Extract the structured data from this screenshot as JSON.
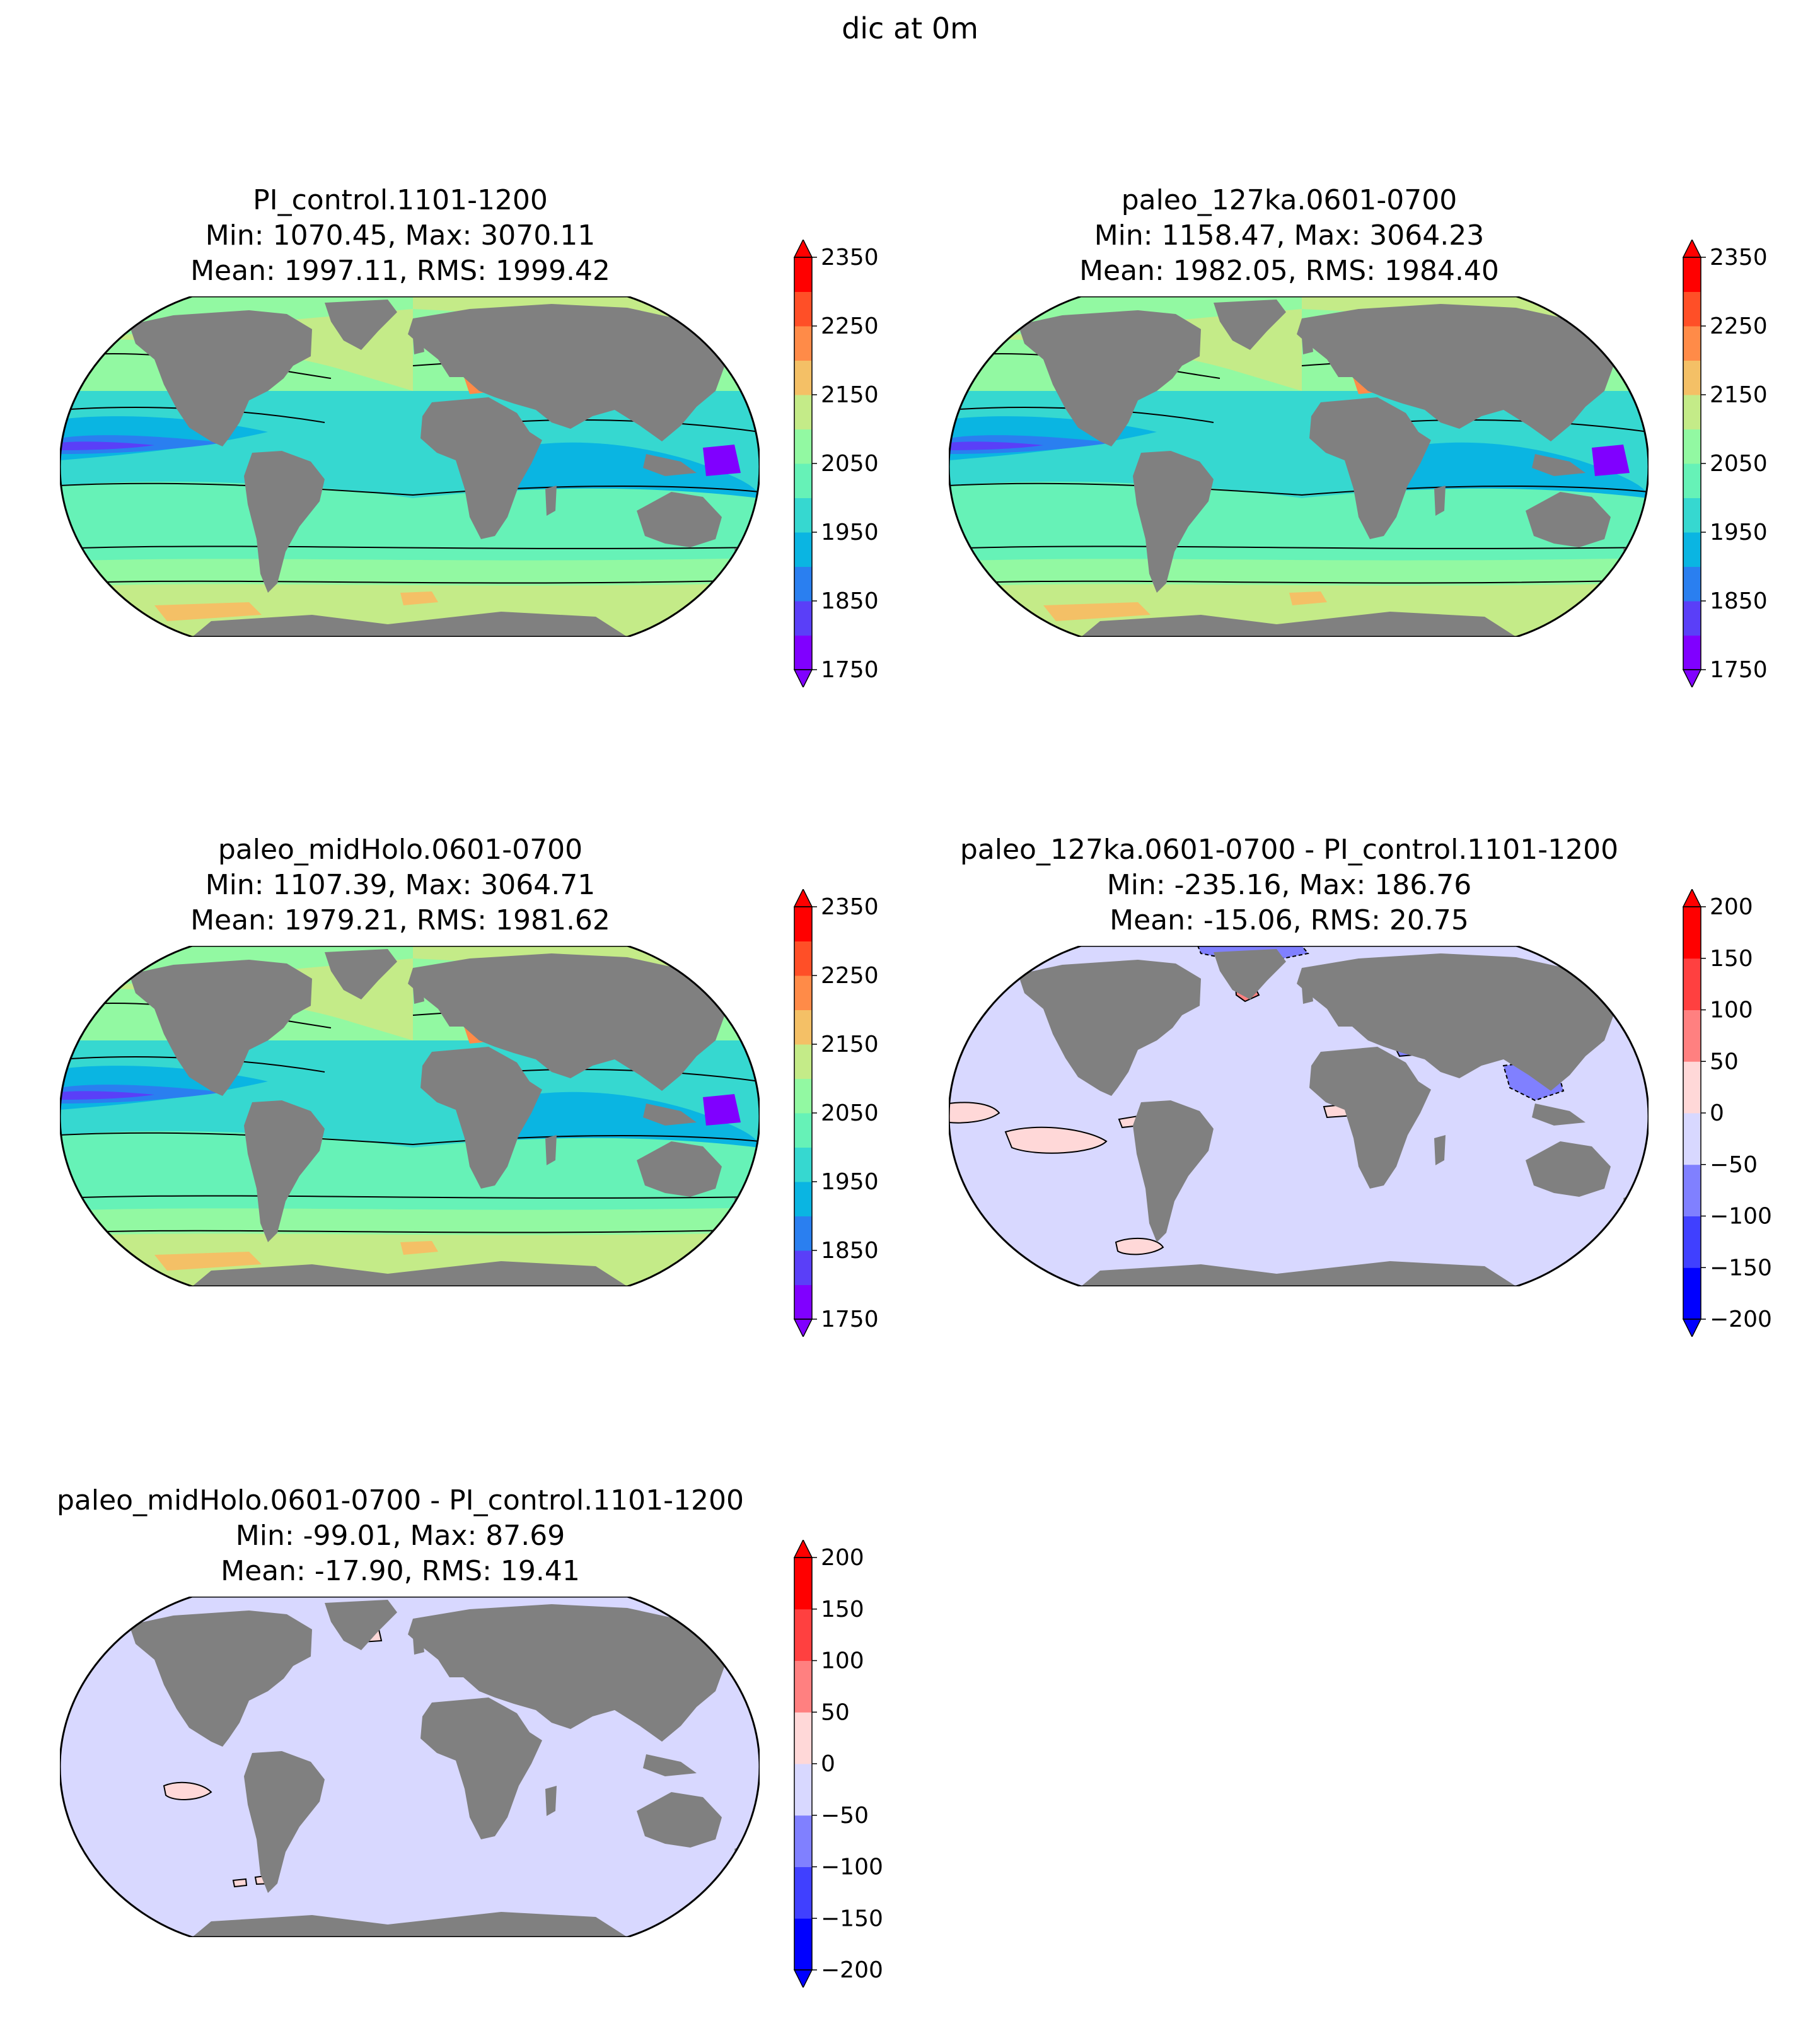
{
  "figure": {
    "suptitle": "dic at 0m"
  },
  "colors": {
    "land": "#808080",
    "abs_levels": [
      "#8000ff",
      "#5a3ff8",
      "#2a7ff0",
      "#0ab5e2",
      "#36d8d0",
      "#66f2b7",
      "#92f9a2",
      "#c4eb88",
      "#f4c066",
      "#ff8b48",
      "#ff4f27",
      "#ff0000"
    ],
    "diff_levels": [
      "#0000ff",
      "#4040ff",
      "#8080ff",
      "#d8d8ff",
      "#ffd8d8",
      "#ff8080",
      "#ff4040",
      "#ff0000"
    ]
  },
  "panels": [
    {
      "title": "PI_control.1101-1200",
      "stats_minmax": "Min: 1070.45, Max: 3070.11",
      "stats_mean": "Mean: 1997.11, RMS: 1999.42",
      "colorbar": {
        "type": "abs",
        "ticks": [
          "2350",
          "2250",
          "2150",
          "2050",
          "1950",
          "1850",
          "1750"
        ]
      }
    },
    {
      "title": "paleo_127ka.0601-0700",
      "stats_minmax": "Min: 1158.47, Max: 3064.23",
      "stats_mean": "Mean: 1982.05, RMS: 1984.40",
      "colorbar": {
        "type": "abs",
        "ticks": [
          "2350",
          "2250",
          "2150",
          "2050",
          "1950",
          "1850",
          "1750"
        ]
      }
    },
    {
      "title": "paleo_midHolo.0601-0700",
      "stats_minmax": "Min: 1107.39, Max: 3064.71",
      "stats_mean": "Mean: 1979.21, RMS: 1981.62",
      "colorbar": {
        "type": "abs",
        "ticks": [
          "2350",
          "2250",
          "2150",
          "2050",
          "1950",
          "1850",
          "1750"
        ]
      }
    },
    {
      "title": "paleo_127ka.0601-0700 - PI_control.1101-1200",
      "stats_minmax": "Min: -235.16, Max: 186.76",
      "stats_mean": "Mean: -15.06, RMS: 20.75",
      "colorbar": {
        "type": "diff",
        "ticks": [
          "200",
          "150",
          "100",
          "50",
          "0",
          "−50",
          "−100",
          "−150",
          "−200"
        ]
      }
    },
    {
      "title": "paleo_midHolo.0601-0700 - PI_control.1101-1200",
      "stats_minmax": "Min: -99.01, Max: 87.69",
      "stats_mean": "Mean: -17.90, RMS: 19.41",
      "colorbar": {
        "type": "diff",
        "ticks": [
          "200",
          "150",
          "100",
          "50",
          "0",
          "−50",
          "−100",
          "−150",
          "−200"
        ]
      }
    }
  ]
}
